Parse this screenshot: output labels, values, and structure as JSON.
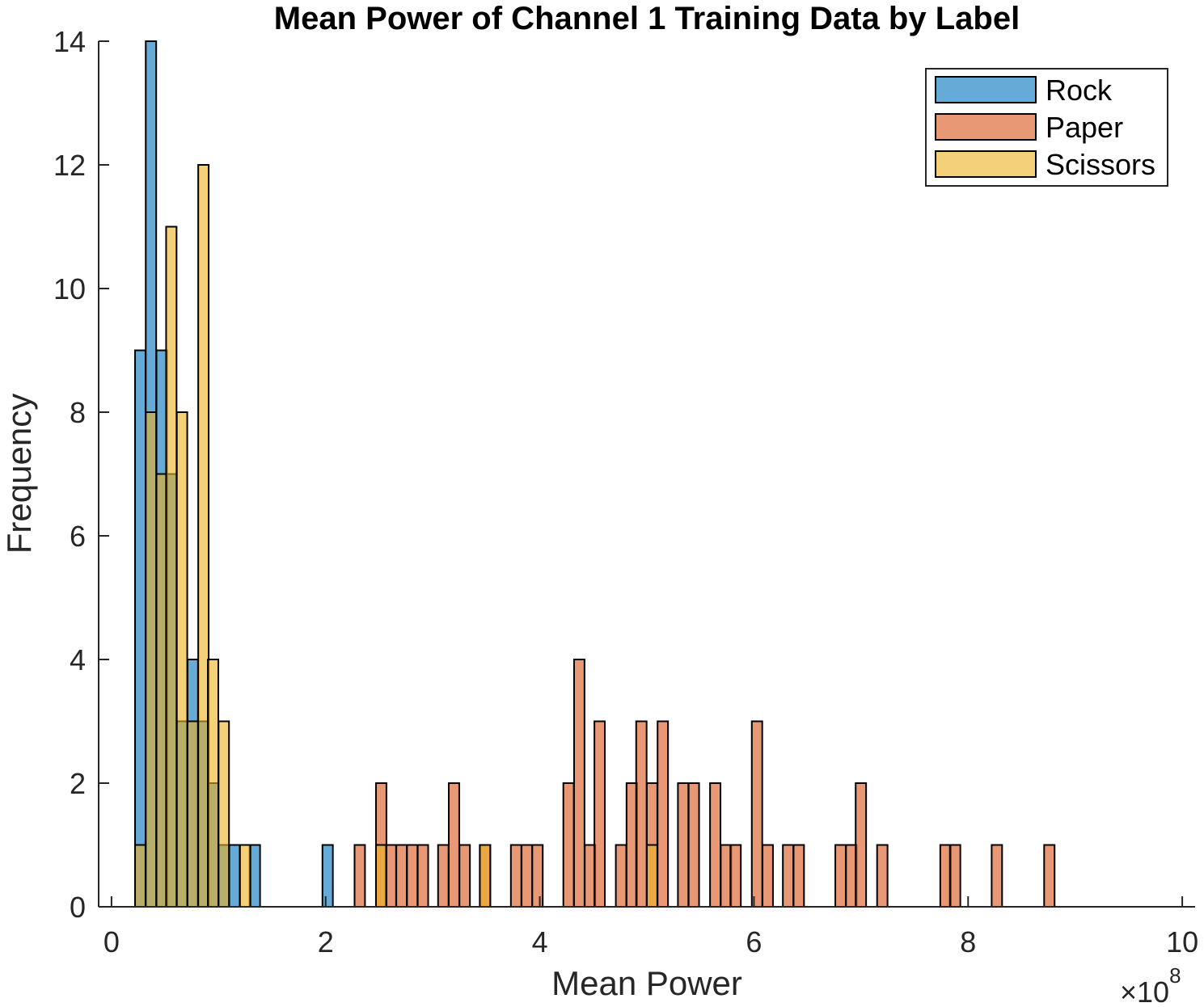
{
  "chart_data": {
    "type": "bar",
    "subtype": "overlaid-histogram",
    "title": "Mean Power of Channel 1 Training Data by Label",
    "xlabel": "Mean Power",
    "ylabel": "Frequency",
    "x_exponent_label": "×10",
    "x_exponent_power": "8",
    "xlim": [
      -0.12,
      10.12
    ],
    "ylim": [
      0,
      14
    ],
    "x_ticks": [
      0,
      2,
      4,
      6,
      8,
      10
    ],
    "x_tick_labels": [
      "0",
      "2",
      "4",
      "6",
      "8",
      "10"
    ],
    "y_ticks": [
      0,
      2,
      4,
      6,
      8,
      10,
      12,
      14
    ],
    "y_tick_labels": [
      "0",
      "2",
      "4",
      "6",
      "8",
      "10",
      "12",
      "14"
    ],
    "bin_width": 0.0975,
    "grid": false,
    "legend_position": "top-right",
    "series_opacity": 0.6,
    "series": [
      {
        "name": "Rock",
        "color": "#0072BD",
        "bins": [
          {
            "x0": 0.22,
            "count": 9
          },
          {
            "x0": 0.32,
            "count": 14
          },
          {
            "x0": 0.42,
            "count": 9
          },
          {
            "x0": 0.51,
            "count": 7
          },
          {
            "x0": 0.61,
            "count": 3
          },
          {
            "x0": 0.71,
            "count": 4
          },
          {
            "x0": 0.81,
            "count": 3
          },
          {
            "x0": 0.9,
            "count": 2
          },
          {
            "x0": 1.0,
            "count": 1
          },
          {
            "x0": 1.1,
            "count": 1
          },
          {
            "x0": 1.29,
            "count": 1
          },
          {
            "x0": 1.97,
            "count": 1
          }
        ]
      },
      {
        "name": "Paper",
        "color": "#D95319",
        "bins": [
          {
            "x0": 2.27,
            "count": 1
          },
          {
            "x0": 2.47,
            "count": 2
          },
          {
            "x0": 2.56,
            "count": 1
          },
          {
            "x0": 2.66,
            "count": 1
          },
          {
            "x0": 2.76,
            "count": 1
          },
          {
            "x0": 2.86,
            "count": 1
          },
          {
            "x0": 3.05,
            "count": 1
          },
          {
            "x0": 3.15,
            "count": 2
          },
          {
            "x0": 3.25,
            "count": 1
          },
          {
            "x0": 3.44,
            "count": 1
          },
          {
            "x0": 3.73,
            "count": 1
          },
          {
            "x0": 3.83,
            "count": 1
          },
          {
            "x0": 3.93,
            "count": 1
          },
          {
            "x0": 4.22,
            "count": 2
          },
          {
            "x0": 4.32,
            "count": 4
          },
          {
            "x0": 4.42,
            "count": 1
          },
          {
            "x0": 4.51,
            "count": 3
          },
          {
            "x0": 4.71,
            "count": 1
          },
          {
            "x0": 4.81,
            "count": 2
          },
          {
            "x0": 4.9,
            "count": 3
          },
          {
            "x0": 5.0,
            "count": 2
          },
          {
            "x0": 5.1,
            "count": 3
          },
          {
            "x0": 5.29,
            "count": 2
          },
          {
            "x0": 5.39,
            "count": 2
          },
          {
            "x0": 5.59,
            "count": 2
          },
          {
            "x0": 5.69,
            "count": 1
          },
          {
            "x0": 5.78,
            "count": 1
          },
          {
            "x0": 5.98,
            "count": 3
          },
          {
            "x0": 6.08,
            "count": 1
          },
          {
            "x0": 6.27,
            "count": 1
          },
          {
            "x0": 6.37,
            "count": 1
          },
          {
            "x0": 6.76,
            "count": 1
          },
          {
            "x0": 6.86,
            "count": 1
          },
          {
            "x0": 6.95,
            "count": 2
          },
          {
            "x0": 7.15,
            "count": 1
          },
          {
            "x0": 7.74,
            "count": 1
          },
          {
            "x0": 7.83,
            "count": 1
          },
          {
            "x0": 8.22,
            "count": 1
          },
          {
            "x0": 8.71,
            "count": 1
          }
        ]
      },
      {
        "name": "Scissors",
        "color": "#EDB120",
        "bins": [
          {
            "x0": 0.22,
            "count": 1
          },
          {
            "x0": 0.32,
            "count": 8
          },
          {
            "x0": 0.42,
            "count": 7
          },
          {
            "x0": 0.51,
            "count": 11
          },
          {
            "x0": 0.61,
            "count": 8
          },
          {
            "x0": 0.71,
            "count": 3
          },
          {
            "x0": 0.81,
            "count": 12
          },
          {
            "x0": 0.9,
            "count": 4
          },
          {
            "x0": 1.0,
            "count": 3
          },
          {
            "x0": 1.2,
            "count": 1
          },
          {
            "x0": 2.47,
            "count": 1
          },
          {
            "x0": 3.44,
            "count": 1
          },
          {
            "x0": 5.0,
            "count": 1
          }
        ]
      }
    ]
  }
}
